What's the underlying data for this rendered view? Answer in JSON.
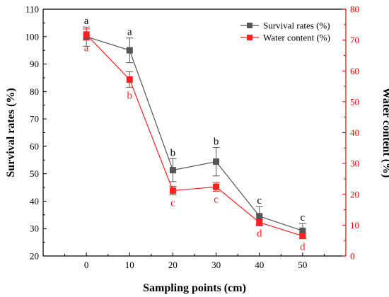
{
  "chart_data": {
    "type": "line",
    "x": [
      0,
      10,
      20,
      30,
      40,
      50
    ],
    "xlabel": "Sampling points (cm)",
    "xlim": [
      -10,
      60
    ],
    "xticks": [
      0,
      10,
      20,
      30,
      40,
      50
    ],
    "left_axis": {
      "label": "Survival rates (%)",
      "ylim": [
        20,
        110
      ],
      "ticks": [
        20,
        30,
        40,
        50,
        60,
        70,
        80,
        90,
        100,
        110
      ],
      "color": "#000000"
    },
    "right_axis": {
      "label": "Water content (%)",
      "ylim": [
        0,
        80
      ],
      "ticks": [
        0,
        10,
        20,
        30,
        40,
        50,
        60,
        70,
        80
      ],
      "color": "#ff0000"
    },
    "series": [
      {
        "name": "Survival rates (%)",
        "axis": "left",
        "color": "#555555",
        "marker": "square",
        "values": [
          100,
          95,
          51.3,
          54.4,
          34.5,
          29.2
        ],
        "error": [
          3.5,
          4.5,
          4.2,
          5.2,
          3.5,
          2.6
        ],
        "letters": [
          "a",
          "a",
          "b",
          "b",
          "c",
          "c"
        ]
      },
      {
        "name": "Water content (%)",
        "axis": "right",
        "color": "#ff2020",
        "marker": "square",
        "values": [
          71.8,
          57.2,
          21.2,
          22.4,
          10.9,
          6.5
        ],
        "error": [
          1.8,
          2.5,
          1.4,
          1.4,
          0.9,
          0.9
        ],
        "letters": [
          "a",
          "b",
          "c",
          "c",
          "d",
          "d"
        ]
      }
    ],
    "legend": "top-right",
    "grid": false
  }
}
